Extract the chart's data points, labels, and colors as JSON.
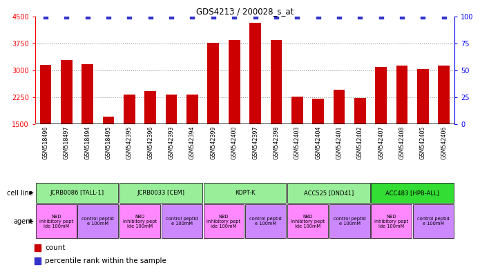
{
  "title": "GDS4213 / 200028_s_at",
  "samples": [
    "GSM518496",
    "GSM518497",
    "GSM518494",
    "GSM518495",
    "GSM542395",
    "GSM542396",
    "GSM542393",
    "GSM542394",
    "GSM542399",
    "GSM542400",
    "GSM542397",
    "GSM542398",
    "GSM542403",
    "GSM542404",
    "GSM542401",
    "GSM542402",
    "GSM542407",
    "GSM542408",
    "GSM542405",
    "GSM542406"
  ],
  "counts": [
    3150,
    3280,
    3180,
    1700,
    2330,
    2410,
    2330,
    2330,
    3770,
    3850,
    4320,
    3840,
    2270,
    2200,
    2460,
    2220,
    3100,
    3140,
    3030,
    3140
  ],
  "percentile": [
    100,
    100,
    100,
    100,
    100,
    100,
    100,
    100,
    100,
    100,
    100,
    100,
    100,
    100,
    100,
    100,
    100,
    100,
    100,
    100
  ],
  "bar_color": "#cc0000",
  "dot_color": "#3333cc",
  "ylim_left": [
    1500,
    4500
  ],
  "ylim_right": [
    0,
    100
  ],
  "yticks_left": [
    1500,
    2250,
    3000,
    3750,
    4500
  ],
  "yticks_right": [
    0,
    25,
    50,
    75,
    100
  ],
  "cell_lines": [
    {
      "label": "JCRB0086 [TALL-1]",
      "start": 0,
      "end": 4,
      "color": "#99ee99"
    },
    {
      "label": "JCRB0033 [CEM]",
      "start": 4,
      "end": 8,
      "color": "#99ee99"
    },
    {
      "label": "KOPT-K",
      "start": 8,
      "end": 12,
      "color": "#99ee99"
    },
    {
      "label": "ACC525 [DND41]",
      "start": 12,
      "end": 16,
      "color": "#99ee99"
    },
    {
      "label": "ACC483 [HPB-ALL]",
      "start": 16,
      "end": 20,
      "color": "#33dd33"
    }
  ],
  "agents": [
    {
      "label": "NBD\ninhibitory pept\nide 100mM",
      "start": 0,
      "end": 2,
      "color": "#ff88ff"
    },
    {
      "label": "control peptid\ne 100mM",
      "start": 2,
      "end": 4,
      "color": "#cc88ff"
    },
    {
      "label": "NBD\ninhibitory pept\nide 100mM",
      "start": 4,
      "end": 6,
      "color": "#ff88ff"
    },
    {
      "label": "control peptid\ne 100mM",
      "start": 6,
      "end": 8,
      "color": "#cc88ff"
    },
    {
      "label": "NBD\ninhibitory pept\nide 100mM",
      "start": 8,
      "end": 10,
      "color": "#ff88ff"
    },
    {
      "label": "control peptid\ne 100mM",
      "start": 10,
      "end": 12,
      "color": "#cc88ff"
    },
    {
      "label": "NBD\ninhibitory pept\nide 100mM",
      "start": 12,
      "end": 14,
      "color": "#ff88ff"
    },
    {
      "label": "control peptid\ne 100mM",
      "start": 14,
      "end": 16,
      "color": "#cc88ff"
    },
    {
      "label": "NBD\ninhibitory pept\nide 100mM",
      "start": 16,
      "end": 18,
      "color": "#ff88ff"
    },
    {
      "label": "control peptid\ne 100mM",
      "start": 18,
      "end": 20,
      "color": "#cc88ff"
    }
  ],
  "xtick_bg": "#cccccc",
  "grid_color": "#999999",
  "bg_color": "#ffffff",
  "chart_bg": "#ffffff",
  "bar_width": 0.55,
  "dot_size": 15,
  "tick_label_fontsize": 5.8
}
